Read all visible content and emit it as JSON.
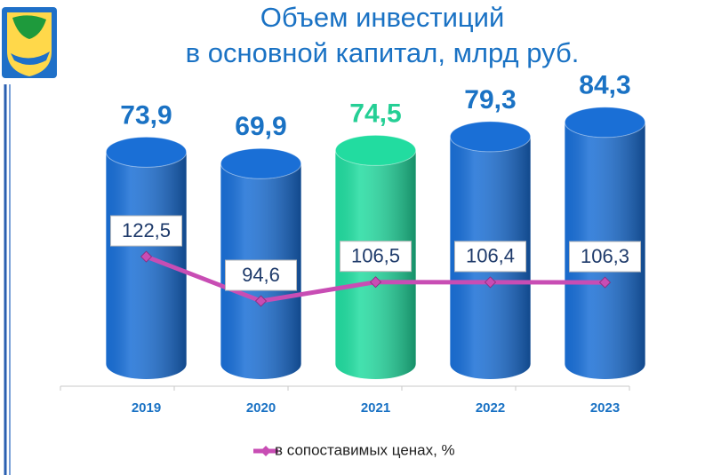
{
  "chart_data": {
    "type": "bar-line",
    "title": [
      "Объем инвестиций",
      "в основной капитал, млрд руб."
    ],
    "categories": [
      "2019",
      "2020",
      "2021",
      "2022",
      "2023"
    ],
    "series": [
      {
        "type": "bar",
        "values": [
          73.9,
          69.9,
          74.5,
          79.3,
          84.3
        ],
        "value_labels": [
          "73,9",
          "69,9",
          "74,5",
          "79,3",
          "84,3"
        ],
        "colors": [
          "#1a6fd6",
          "#1a6fd6",
          "#22dca0",
          "#1a6fd6",
          "#1a6fd6"
        ],
        "label_colors": [
          "#1a72c4",
          "#1a72c4",
          "#25cf95",
          "#1a72c4",
          "#1a72c4"
        ]
      },
      {
        "type": "line",
        "name": "в сопоставимых ценах, %",
        "axis": "y2",
        "color": "#c84db4",
        "values": [
          122.5,
          94.6,
          106.5,
          106.4,
          106.3
        ],
        "value_labels": [
          "122,5",
          "94,6",
          "106,5",
          "106,4",
          "106,3"
        ]
      }
    ],
    "ylim": [
      0,
      96
    ],
    "y2lim": [
      55,
      228
    ],
    "legend": "bottom"
  }
}
